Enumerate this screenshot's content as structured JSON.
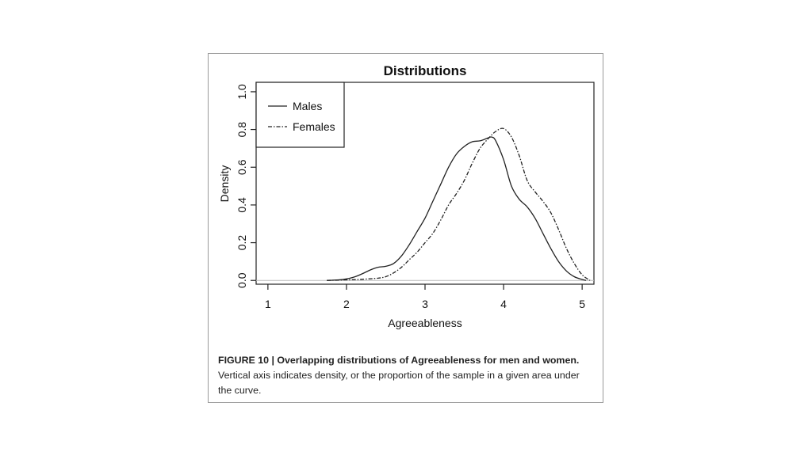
{
  "chart_data": {
    "type": "line",
    "title": "Distributions",
    "xlabel": "Agreeableness",
    "ylabel": "Density",
    "xlim": [
      0.85,
      5.15
    ],
    "ylim": [
      -0.02,
      1.05
    ],
    "xticks": [
      "1",
      "2",
      "3",
      "4",
      "5"
    ],
    "yticks": [
      "0.0",
      "0.2",
      "0.4",
      "0.6",
      "0.8",
      "1.0"
    ],
    "legend_position": "top-left",
    "grid": false,
    "series": [
      {
        "name": "Males",
        "style": "solid",
        "x": [
          1.75,
          1.9,
          2.0,
          2.1,
          2.2,
          2.3,
          2.4,
          2.5,
          2.6,
          2.7,
          2.8,
          2.9,
          3.0,
          3.1,
          3.2,
          3.3,
          3.4,
          3.5,
          3.6,
          3.7,
          3.8,
          3.85,
          3.9,
          4.0,
          4.1,
          4.2,
          4.3,
          4.4,
          4.5,
          4.6,
          4.7,
          4.8,
          4.9,
          5.0,
          5.05
        ],
        "y": [
          0.0,
          0.003,
          0.008,
          0.018,
          0.035,
          0.055,
          0.07,
          0.075,
          0.09,
          0.13,
          0.19,
          0.26,
          0.33,
          0.42,
          0.51,
          0.6,
          0.67,
          0.71,
          0.735,
          0.74,
          0.755,
          0.76,
          0.74,
          0.64,
          0.5,
          0.43,
          0.39,
          0.33,
          0.25,
          0.17,
          0.1,
          0.05,
          0.02,
          0.005,
          0.0
        ]
      },
      {
        "name": "Females",
        "style": "dashdot",
        "x": [
          1.75,
          2.0,
          2.2,
          2.4,
          2.5,
          2.6,
          2.7,
          2.8,
          2.9,
          3.0,
          3.1,
          3.2,
          3.3,
          3.4,
          3.5,
          3.6,
          3.7,
          3.8,
          3.9,
          4.0,
          4.1,
          4.2,
          4.3,
          4.4,
          4.5,
          4.6,
          4.7,
          4.8,
          4.9,
          5.0,
          5.1
        ],
        "y": [
          0.0,
          0.003,
          0.006,
          0.012,
          0.02,
          0.04,
          0.07,
          0.11,
          0.15,
          0.2,
          0.25,
          0.32,
          0.4,
          0.46,
          0.53,
          0.62,
          0.7,
          0.75,
          0.79,
          0.805,
          0.76,
          0.66,
          0.53,
          0.47,
          0.42,
          0.36,
          0.27,
          0.17,
          0.09,
          0.03,
          0.0
        ]
      }
    ]
  },
  "caption": {
    "bold": "FIGURE 10 | Overlapping distributions of Agreeableness for men and women.",
    "text": " Vertical axis indicates density, or the proportion of the sample in a given area under the curve."
  }
}
